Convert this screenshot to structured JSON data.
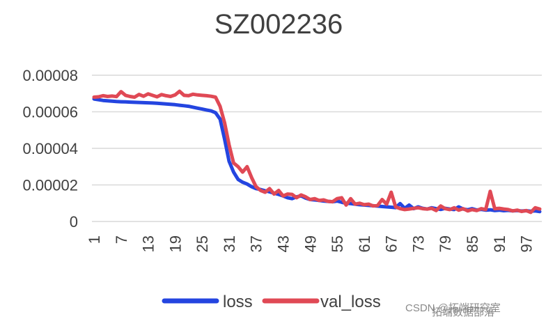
{
  "chart_data": {
    "type": "line",
    "title": "SZ002236",
    "xlabel": "",
    "ylabel": "",
    "x_tick_labels": [
      "1",
      "7",
      "13",
      "19",
      "25",
      "31",
      "37",
      "43",
      "49",
      "55",
      "61",
      "67",
      "73",
      "79",
      "85",
      "91",
      "97"
    ],
    "ylim": [
      0,
      8e-05
    ],
    "y_tick_labels": [
      "0",
      "0.00002",
      "0.00004",
      "0.00006",
      "0.00008"
    ],
    "grid": true,
    "legend_position": "bottom",
    "series": [
      {
        "name": "loss",
        "color": "#2445e0",
        "values": [
          6.7e-05,
          6.66e-05,
          6.62e-05,
          6.6e-05,
          6.58e-05,
          6.56e-05,
          6.55e-05,
          6.54e-05,
          6.53e-05,
          6.52e-05,
          6.51e-05,
          6.5e-05,
          6.49e-05,
          6.48e-05,
          6.47e-05,
          6.45e-05,
          6.43e-05,
          6.41e-05,
          6.39e-05,
          6.36e-05,
          6.33e-05,
          6.3e-05,
          6.25e-05,
          6.2e-05,
          6.15e-05,
          6.1e-05,
          6.05e-05,
          5.95e-05,
          5.6e-05,
          4.5e-05,
          3.3e-05,
          2.7e-05,
          2.3e-05,
          2.15e-05,
          2.05e-05,
          1.9e-05,
          1.8e-05,
          1.75e-05,
          1.68e-05,
          1.62e-05,
          1.55e-05,
          1.48e-05,
          1.4e-05,
          1.3e-05,
          1.25e-05,
          1.35e-05,
          1.4e-05,
          1.28e-05,
          1.2e-05,
          1.18e-05,
          1.15e-05,
          1.12e-05,
          1.1e-05,
          1.08e-05,
          1.12e-05,
          1.05e-05,
          1e-05,
          9.8e-06,
          9.5e-06,
          9.2e-06,
          9e-06,
          8.8e-06,
          8.6e-06,
          8.4e-06,
          8.2e-06,
          8e-06,
          7.8e-06,
          7.6e-06,
          9.8e-06,
          7.2e-06,
          9e-06,
          7e-06,
          8e-06,
          7.2e-06,
          6.8e-06,
          7.5e-06,
          7e-06,
          6.6e-06,
          7.2e-06,
          6.8e-06,
          6.5e-06,
          8e-06,
          6.8e-06,
          6.4e-06,
          7e-06,
          6.3e-06,
          6.6e-06,
          6.2e-06,
          6.4e-06,
          6e-06,
          6.2e-06,
          5.9e-06,
          6.1e-06,
          5.8e-06,
          6e-06,
          5.7e-06,
          5.9e-06,
          5.6e-06,
          5.8e-06,
          5.4e-06
        ]
      },
      {
        "name": "val_loss",
        "color": "#e04955",
        "values": [
          6.8e-05,
          6.82e-05,
          6.88e-05,
          6.84e-05,
          6.86e-05,
          6.83e-05,
          7.1e-05,
          6.9e-05,
          6.84e-05,
          6.8e-05,
          6.95e-05,
          6.85e-05,
          6.98e-05,
          6.9e-05,
          6.82e-05,
          6.94e-05,
          6.88e-05,
          6.84e-05,
          6.92e-05,
          7.12e-05,
          6.9e-05,
          6.88e-05,
          6.96e-05,
          6.92e-05,
          6.9e-05,
          6.88e-05,
          6.85e-05,
          6.8e-05,
          6.3e-05,
          5.4e-05,
          4.2e-05,
          3.2e-05,
          3e-05,
          2.7e-05,
          3e-05,
          2.4e-05,
          1.9e-05,
          1.7e-05,
          1.6e-05,
          1.8e-05,
          1.5e-05,
          1.7e-05,
          1.4e-05,
          1.5e-05,
          1.48e-05,
          1.3e-05,
          1.45e-05,
          1.35e-05,
          1.2e-05,
          1.25e-05,
          1.15e-05,
          1.18e-05,
          1.1e-05,
          1.08e-05,
          1.25e-05,
          1.3e-05,
          9e-06,
          1.25e-05,
          9.5e-06,
          1e-05,
          9.2e-06,
          9.5e-06,
          8.5e-06,
          8.8e-06,
          1.2e-05,
          9.5e-06,
          1.6e-05,
          8e-06,
          7e-06,
          6.5e-06,
          6.8e-06,
          7.2e-06,
          7.5e-06,
          7e-06,
          6.8e-06,
          7.2e-06,
          6e-06,
          8.5e-06,
          7e-06,
          6.5e-06,
          7.5e-06,
          6.2e-06,
          7e-06,
          5.8e-06,
          6.5e-06,
          6e-06,
          7e-06,
          6.5e-06,
          1.65e-05,
          7e-06,
          7.2e-06,
          6.8e-06,
          6.5e-06,
          5.8e-06,
          6.2e-06,
          5.5e-06,
          6e-06,
          5e-06,
          7.5e-06,
          6.8e-06
        ]
      }
    ]
  },
  "watermarks": [
    "拓端数据部落",
    "CSDN @拓端研究室"
  ]
}
